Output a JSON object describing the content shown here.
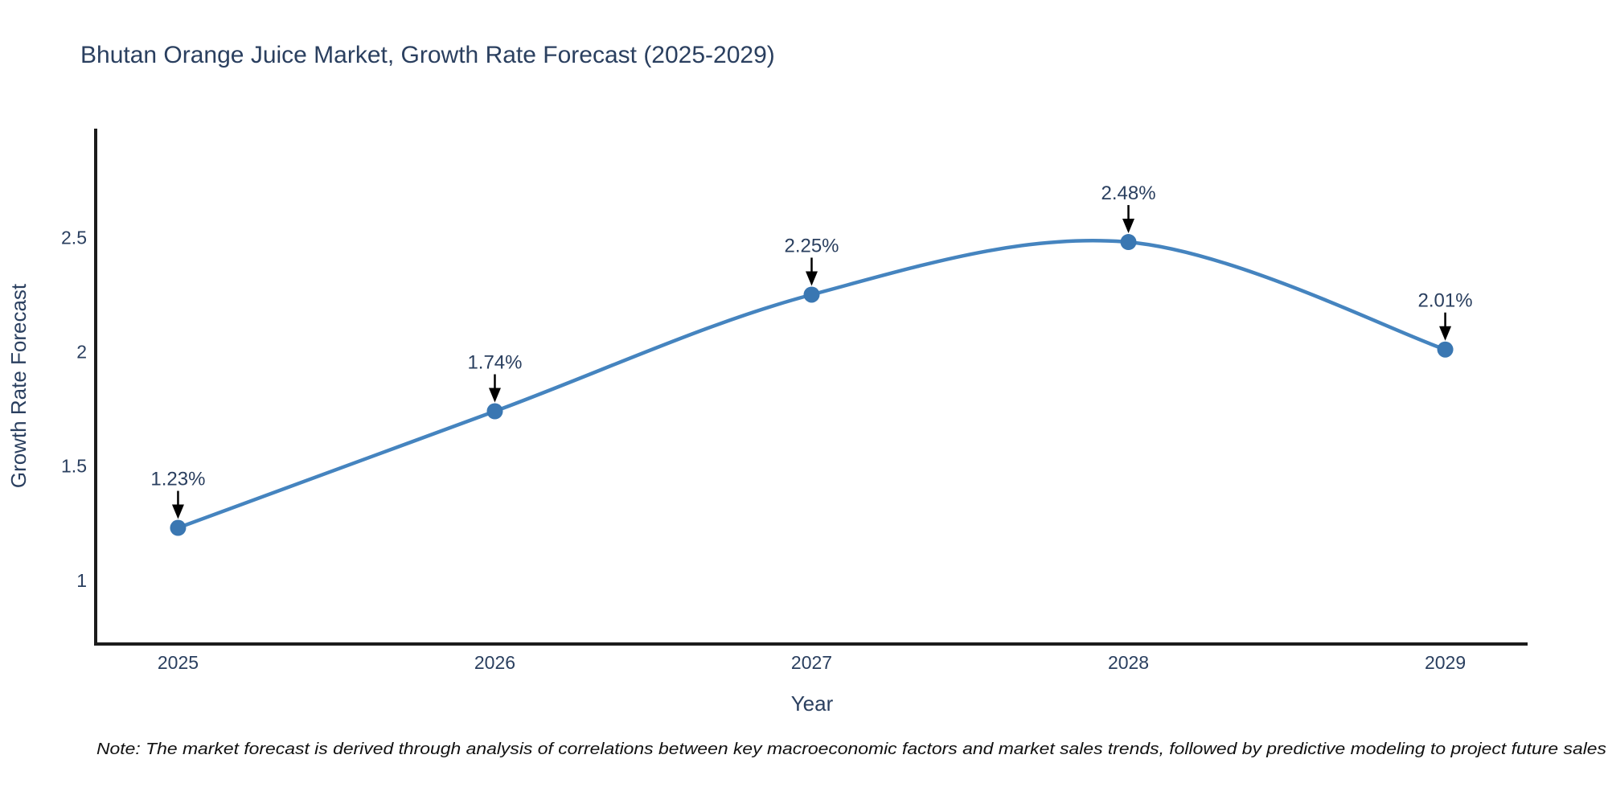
{
  "page": {
    "background": "#ffffff"
  },
  "chart_data": {
    "type": "line",
    "title": "Bhutan Orange Juice Market, Growth Rate Forecast (2025-2029)",
    "xlabel": "Year",
    "ylabel": "Growth Rate Forecast",
    "categories": [
      "2025",
      "2026",
      "2027",
      "2028",
      "2029"
    ],
    "values": [
      1.23,
      1.74,
      2.25,
      2.48,
      2.01
    ],
    "point_labels": [
      "1.23%",
      "1.74%",
      "2.25%",
      "2.48%",
      "2.01%"
    ],
    "y_ticks": [
      1,
      1.5,
      2,
      2.5
    ],
    "y_tick_labels": [
      "1",
      "1.5",
      "2",
      "2.5"
    ],
    "ylim": [
      0.722,
      2.976
    ],
    "xlim_category_padding": 0.26,
    "line_shape": "spline",
    "grid": false,
    "legend": false,
    "annotation_style": "value label with downward arrow above each data point",
    "colors": {
      "line": "#4584bf",
      "marker": "#3a77b2",
      "axis_line": "#1c1c1c",
      "chart_text": "#2a3f5f",
      "arrow": "#000000",
      "note_text": "#111111"
    }
  },
  "note": {
    "text": "Note: The market forecast is derived through analysis of correlations between key macroeconomic factors and market sales trends, followed by predictive modeling to project future sales"
  }
}
